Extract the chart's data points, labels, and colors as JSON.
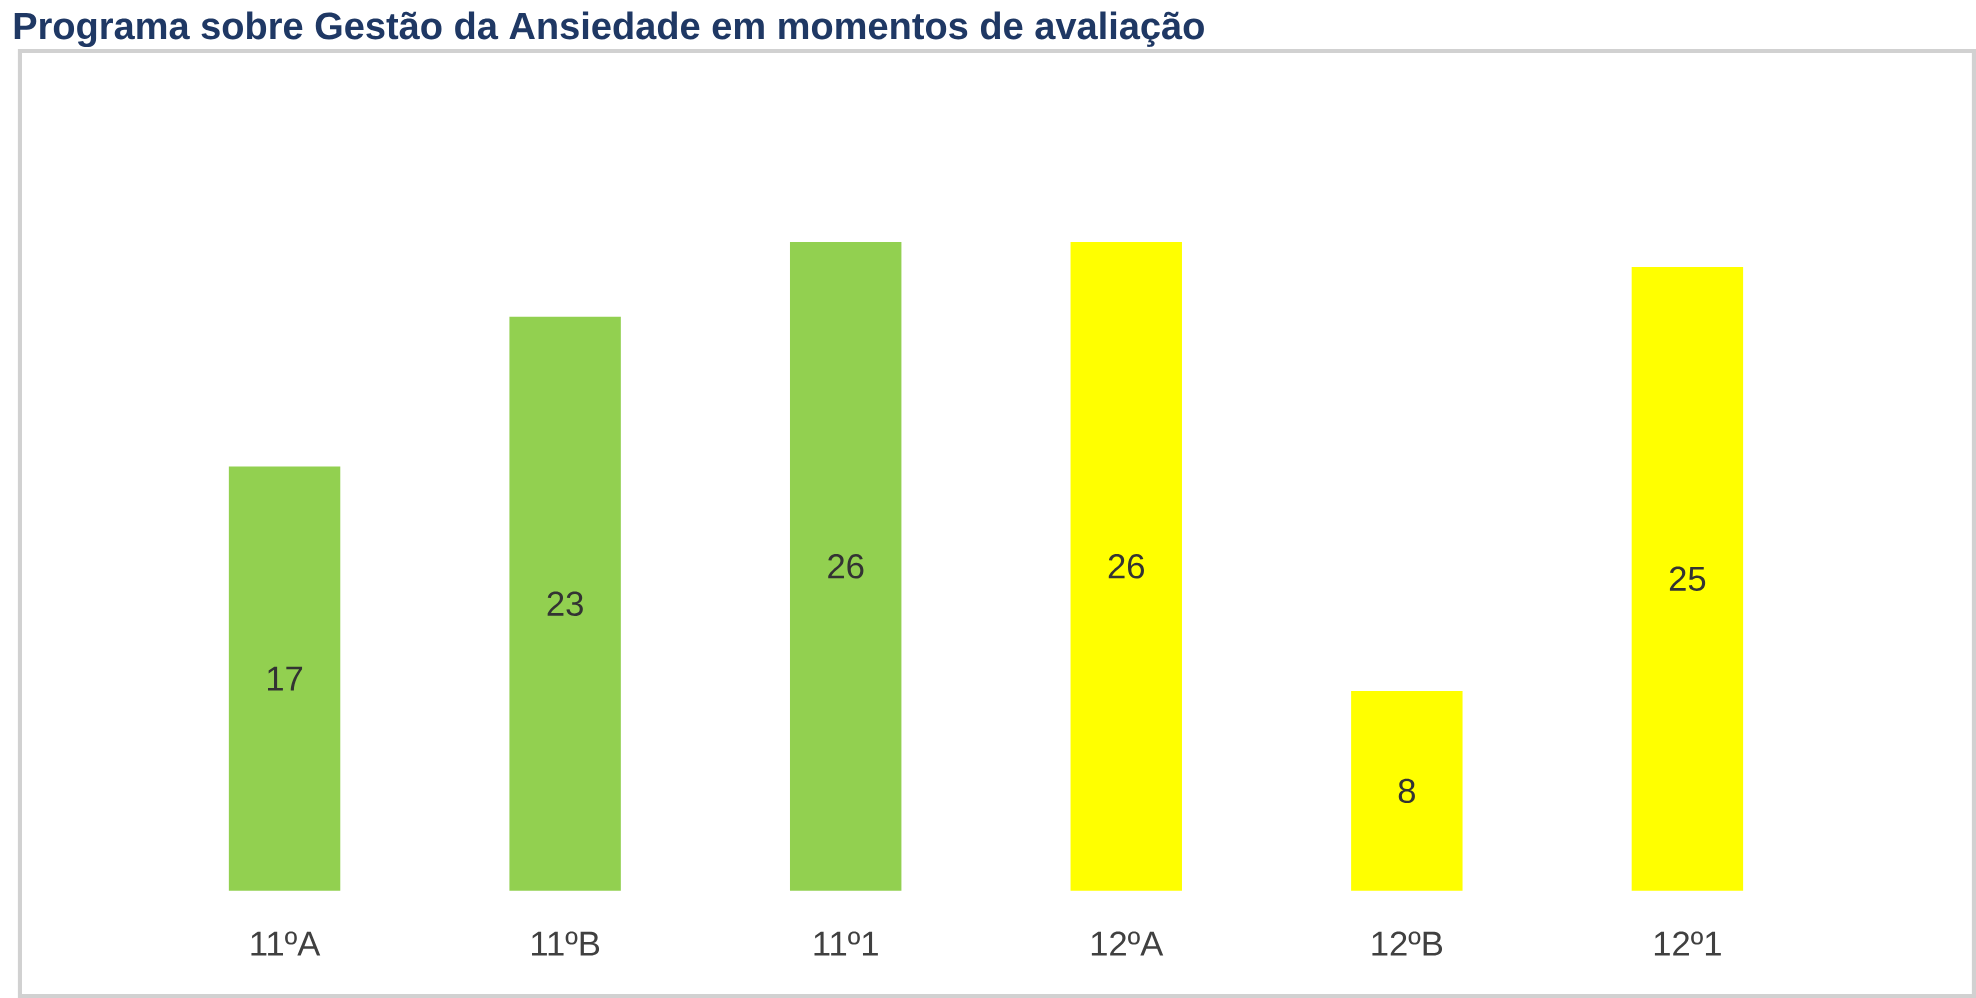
{
  "chart_data": {
    "type": "bar",
    "title": "Programa sobre Gestão da Ansiedade em momentos de avaliação",
    "categories": [
      "11ºA",
      "11ºB",
      "11º1",
      "12ºA",
      "12ºB",
      "12º1"
    ],
    "values": [
      17,
      23,
      26,
      26,
      8,
      25
    ],
    "colors": [
      "#92d050",
      "#92d050",
      "#92d050",
      "#ffff00",
      "#ffff00",
      "#ffff00"
    ],
    "data_labels": true
  }
}
